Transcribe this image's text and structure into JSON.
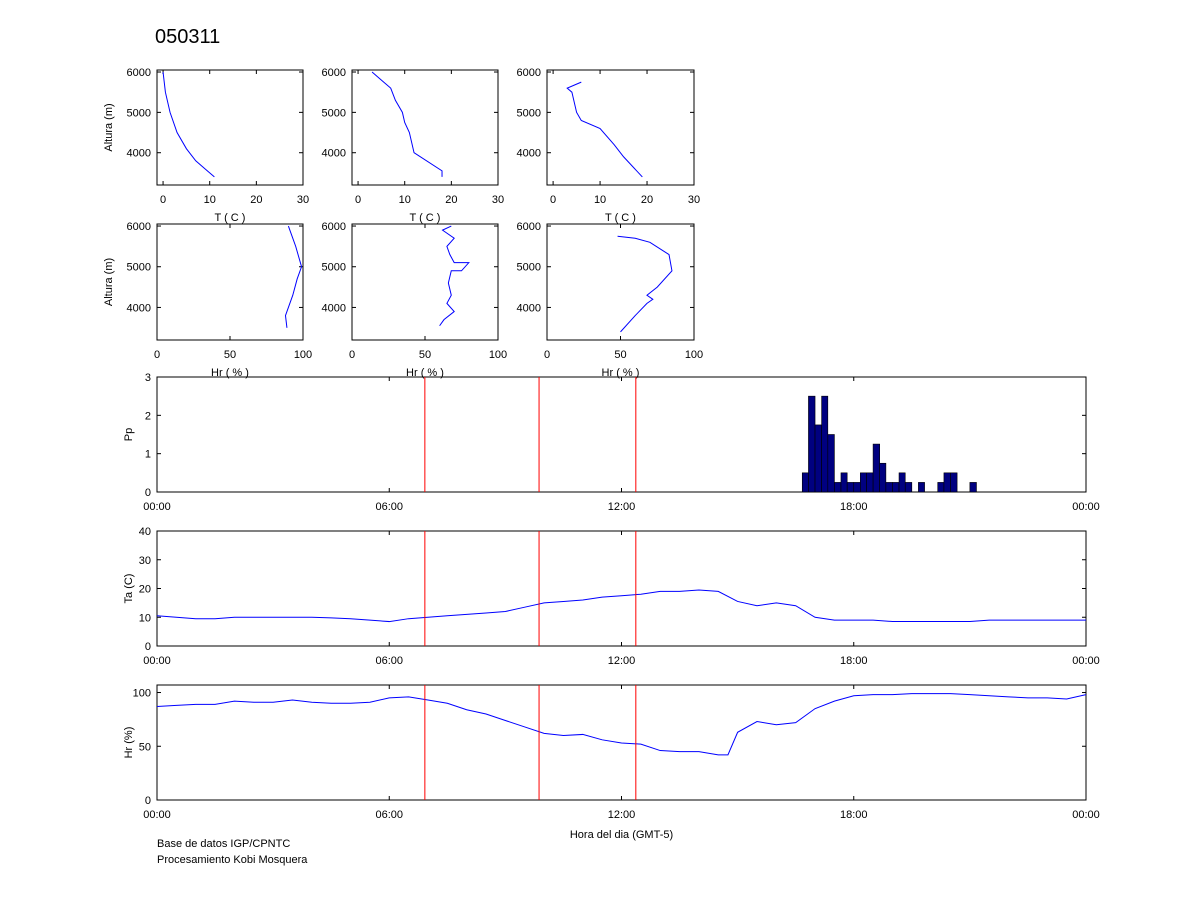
{
  "title": "050311",
  "footer": [
    "Base de datos IGP/CPNTC",
    "Procesamiento Kobi Mosquera"
  ],
  "chart_data": [
    {
      "type": "line",
      "xlabel": "T ( C )",
      "ylabel": "Altura (m)",
      "xlim": [
        -1.3,
        30
      ],
      "ylim": [
        3200,
        6050
      ],
      "xticks": [
        0,
        10,
        20,
        30
      ],
      "yticks": [
        4000,
        5000,
        6000
      ],
      "color": "#0000ff",
      "x": [
        11,
        9,
        7,
        5,
        3,
        1.5,
        0.5,
        0
      ],
      "values": [
        3400,
        3600,
        3800,
        4100,
        4500,
        5000,
        5500,
        6000
      ]
    },
    {
      "type": "line",
      "xlabel": "T ( C )",
      "xlim": [
        -1.3,
        30
      ],
      "ylim": [
        3200,
        6050
      ],
      "xticks": [
        0,
        10,
        20,
        30
      ],
      "yticks": [
        4000,
        5000,
        6000
      ],
      "color": "#0000ff",
      "x": [
        18,
        18,
        12,
        11,
        10,
        9.5,
        8,
        7,
        5,
        3
      ],
      "values": [
        3400,
        3550,
        4000,
        4500,
        4750,
        5000,
        5300,
        5600,
        5800,
        6000
      ]
    },
    {
      "type": "line",
      "xlabel": "T ( C )",
      "xlim": [
        -1.3,
        30
      ],
      "ylim": [
        3200,
        6050
      ],
      "xticks": [
        0,
        10,
        20,
        30
      ],
      "yticks": [
        4000,
        5000,
        6000
      ],
      "color": "#0000ff",
      "x": [
        19,
        15,
        13,
        10,
        6,
        5,
        4,
        3,
        5,
        6
      ],
      "values": [
        3400,
        3900,
        4200,
        4600,
        4800,
        5000,
        5500,
        5600,
        5700,
        5750
      ]
    },
    {
      "type": "line",
      "xlabel": "Hr ( % )",
      "ylabel": "Altura (m)",
      "xlim": [
        0,
        100
      ],
      "ylim": [
        3200,
        6050
      ],
      "xticks": [
        0,
        50,
        100
      ],
      "yticks": [
        4000,
        5000,
        6000
      ],
      "color": "#0000ff",
      "x": [
        89,
        88,
        93,
        96,
        99,
        95,
        92,
        90
      ],
      "values": [
        3500,
        3800,
        4300,
        4700,
        5000,
        5500,
        5800,
        6000
      ]
    },
    {
      "type": "line",
      "xlabel": "Hr ( % )",
      "xlim": [
        0,
        100
      ],
      "ylim": [
        3200,
        6050
      ],
      "xticks": [
        0,
        50,
        100
      ],
      "yticks": [
        4000,
        5000,
        6000
      ],
      "color": "#0000ff",
      "x": [
        60,
        63,
        70,
        65,
        68,
        66,
        68,
        75,
        80,
        70,
        67,
        65,
        70,
        62,
        68
      ],
      "values": [
        3550,
        3700,
        3900,
        4100,
        4300,
        4600,
        4900,
        4900,
        5100,
        5100,
        5300,
        5500,
        5700,
        5900,
        6000
      ]
    },
    {
      "type": "line",
      "xlabel": "Hr ( % )",
      "xlim": [
        0,
        100
      ],
      "ylim": [
        3200,
        6050
      ],
      "xticks": [
        0,
        50,
        100
      ],
      "yticks": [
        4000,
        5000,
        6000
      ],
      "color": "#0000ff",
      "x": [
        50,
        60,
        68,
        72,
        68,
        75,
        85,
        83,
        70,
        60,
        48
      ],
      "values": [
        3400,
        3800,
        4100,
        4200,
        4300,
        4500,
        4900,
        5300,
        5600,
        5700,
        5750
      ]
    },
    {
      "type": "histogram",
      "ylabel": "Pp",
      "xlim": [
        0,
        24
      ],
      "ylim": [
        0,
        3
      ],
      "xticks": [
        {
          "value": 0,
          "label": "00:00"
        },
        {
          "value": 6,
          "label": "06:00"
        },
        {
          "value": 12,
          "label": "12:00"
        },
        {
          "value": 18,
          "label": "18:00"
        },
        {
          "value": 24,
          "label": "00:00"
        }
      ],
      "yticks": [
        0,
        1,
        2,
        3
      ],
      "color": "#000080",
      "vlines": [
        6.92,
        9.87,
        12.37
      ],
      "vline_color": "#ff0000",
      "bins": [
        16.67,
        16.83,
        17.0,
        17.17,
        17.33,
        17.5,
        17.67,
        17.83,
        18.0,
        18.17,
        18.33,
        18.5,
        18.67,
        18.83,
        19.0,
        19.17,
        19.33,
        19.5,
        19.67,
        19.83,
        20.0,
        20.17,
        20.33,
        20.5,
        20.67,
        20.83,
        21.0,
        21.17
      ],
      "values": [
        0.5,
        2.5,
        1.75,
        2.5,
        1.5,
        0.25,
        0.5,
        0.25,
        0.25,
        0.5,
        0.5,
        1.25,
        0.75,
        0.25,
        0.25,
        0.5,
        0.25,
        0,
        0.25,
        0,
        0,
        0.25,
        0.5,
        0.5,
        0,
        0,
        0.25
      ]
    },
    {
      "type": "line",
      "ylabel": "Ta (C)",
      "xlim": [
        0,
        24
      ],
      "ylim": [
        0,
        40
      ],
      "xticks": [
        {
          "value": 0,
          "label": "00:00"
        },
        {
          "value": 6,
          "label": "06:00"
        },
        {
          "value": 12,
          "label": "12:00"
        },
        {
          "value": 18,
          "label": "18:00"
        },
        {
          "value": 24,
          "label": "00:00"
        }
      ],
      "yticks": [
        0,
        10,
        20,
        30,
        40
      ],
      "color": "#0000ff",
      "vlines": [
        6.92,
        9.87,
        12.37
      ],
      "vline_color": "#ff0000",
      "x": [
        0,
        0.5,
        1,
        1.5,
        2,
        2.5,
        3,
        3.5,
        4,
        4.5,
        5,
        5.5,
        6,
        6.5,
        7,
        7.5,
        8,
        8.5,
        9,
        9.5,
        10,
        10.5,
        11,
        11.5,
        12,
        12.5,
        13,
        13.5,
        14,
        14.5,
        15,
        15.5,
        16,
        16.5,
        17,
        17.5,
        18,
        18.5,
        19,
        19.5,
        20,
        20.5,
        21,
        21.5,
        22,
        22.5,
        23,
        23.5,
        24
      ],
      "values": [
        10.5,
        10,
        9.5,
        9.5,
        10,
        10,
        10,
        10,
        10,
        9.8,
        9.5,
        9,
        8.5,
        9.5,
        10,
        10.5,
        11,
        11.5,
        12,
        13.5,
        15,
        15.5,
        16,
        17,
        17.5,
        18,
        19,
        19,
        19.5,
        19,
        15.5,
        14,
        15,
        14,
        10,
        9,
        9,
        9,
        8.5,
        8.5,
        8.5,
        8.5,
        8.5,
        9,
        9,
        9,
        9,
        9,
        9
      ]
    },
    {
      "type": "line",
      "ylabel": "Hr (%)",
      "xlabel": "Hora del dia (GMT-5)",
      "xlim": [
        0,
        24
      ],
      "ylim": [
        0,
        107
      ],
      "xticks": [
        {
          "value": 0,
          "label": "00:00"
        },
        {
          "value": 6,
          "label": "06:00"
        },
        {
          "value": 12,
          "label": "12:00"
        },
        {
          "value": 18,
          "label": "18:00"
        },
        {
          "value": 24,
          "label": "00:00"
        }
      ],
      "yticks": [
        0,
        50,
        100
      ],
      "color": "#0000ff",
      "vlines": [
        6.92,
        9.87,
        12.37
      ],
      "vline_color": "#ff0000",
      "x": [
        0,
        0.5,
        1,
        1.5,
        2,
        2.5,
        3,
        3.5,
        4,
        4.5,
        5,
        5.5,
        6,
        6.5,
        7,
        7.5,
        8,
        8.5,
        9,
        9.5,
        10,
        10.5,
        11,
        11.5,
        12,
        12.5,
        13,
        13.5,
        14,
        14.5,
        14.75,
        15,
        15.5,
        16,
        16.5,
        17,
        17.5,
        18,
        18.5,
        19,
        19.5,
        20,
        20.5,
        21,
        21.5,
        22,
        22.5,
        23,
        23.5,
        24
      ],
      "values": [
        87,
        88,
        89,
        89,
        92,
        91,
        91,
        93,
        91,
        90,
        90,
        91,
        95,
        96,
        93,
        90,
        84,
        80,
        74,
        68,
        62,
        60,
        61,
        56,
        53,
        52,
        46,
        45,
        45,
        42,
        42,
        63,
        73,
        70,
        72,
        85,
        92,
        97,
        98,
        98,
        99,
        99,
        99,
        98,
        97,
        96,
        95,
        95,
        94,
        98
      ]
    }
  ]
}
